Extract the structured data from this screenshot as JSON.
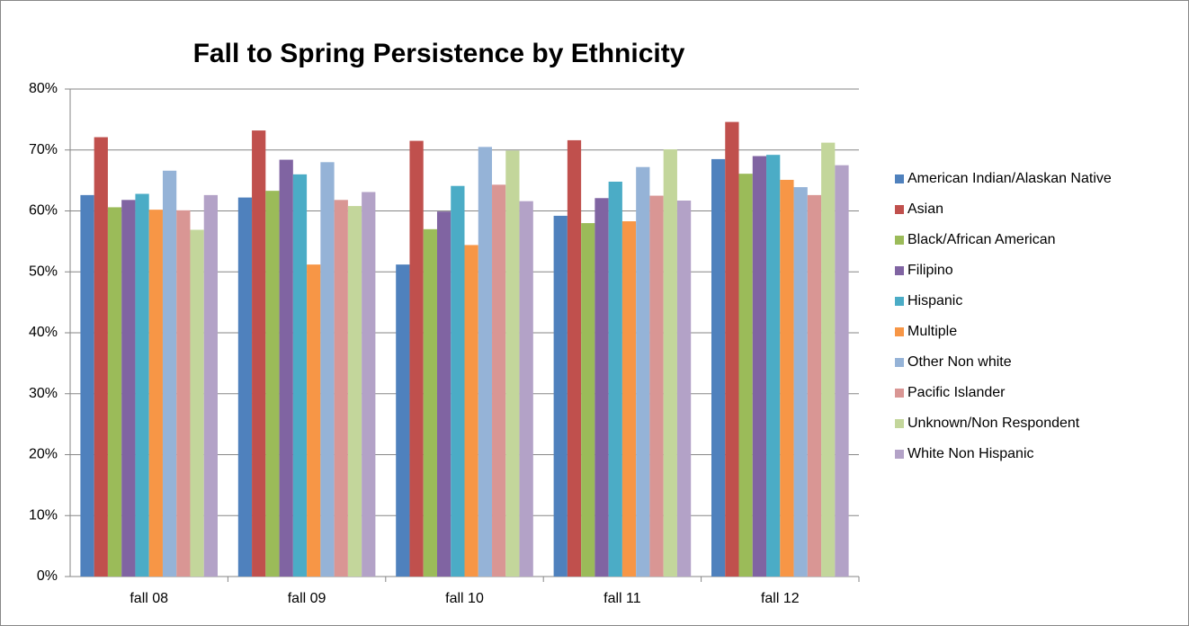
{
  "chart_data": {
    "type": "bar",
    "title": "Fall to Spring Persistence by Ethnicity",
    "categories": [
      "fall 08",
      "fall 09",
      "fall 10",
      "fall 11",
      "fall 12"
    ],
    "series": [
      {
        "name": "American Indian/Alaskan Native",
        "color": "#4F81BD",
        "values": [
          62.6,
          62.2,
          51.2,
          59.2,
          68.5
        ]
      },
      {
        "name": "Asian",
        "color": "#C0504D",
        "values": [
          72.1,
          73.2,
          71.5,
          71.6,
          74.6
        ]
      },
      {
        "name": "Black/African American",
        "color": "#9BBB59",
        "values": [
          60.6,
          63.3,
          57.0,
          58.0,
          66.1
        ]
      },
      {
        "name": "Filipino",
        "color": "#8064A2",
        "values": [
          61.8,
          68.4,
          59.9,
          62.1,
          69.0
        ]
      },
      {
        "name": "Hispanic",
        "color": "#4BACC6",
        "values": [
          62.8,
          66.0,
          64.1,
          64.8,
          69.2
        ]
      },
      {
        "name": "Multiple",
        "color": "#F79646",
        "values": [
          60.2,
          51.2,
          54.4,
          58.3,
          65.1
        ]
      },
      {
        "name": "Other Non white",
        "color": "#95B3D7",
        "values": [
          66.6,
          68.0,
          70.5,
          67.2,
          63.9
        ]
      },
      {
        "name": "Pacific Islander",
        "color": "#D99694",
        "values": [
          60.1,
          61.8,
          64.3,
          62.5,
          62.6
        ]
      },
      {
        "name": "Unknown/Non Respondent",
        "color": "#C3D69B",
        "values": [
          56.9,
          60.8,
          69.9,
          70.1,
          71.2
        ]
      },
      {
        "name": "White Non Hispanic",
        "color": "#B3A2C7",
        "values": [
          62.6,
          63.1,
          61.6,
          61.7,
          67.5
        ]
      }
    ],
    "ylim": [
      0,
      80
    ],
    "yticks": [
      {
        "value": 0,
        "label": "0%"
      },
      {
        "value": 10,
        "label": "10%"
      },
      {
        "value": 20,
        "label": "20%"
      },
      {
        "value": 30,
        "label": "30%"
      },
      {
        "value": 40,
        "label": "40%"
      },
      {
        "value": 50,
        "label": "50%"
      },
      {
        "value": 60,
        "label": "60%"
      },
      {
        "value": 70,
        "label": "70%"
      },
      {
        "value": 80,
        "label": "80%"
      }
    ],
    "grid": true,
    "legend": "right"
  }
}
